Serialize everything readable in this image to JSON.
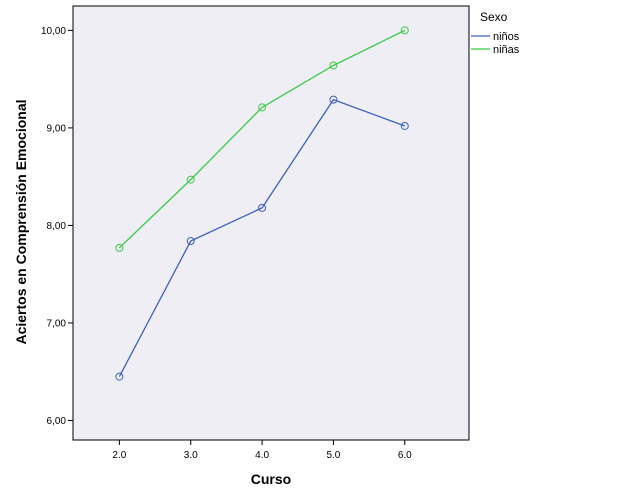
{
  "chart_data": {
    "type": "line",
    "xlabel": "Curso",
    "ylabel": "Aciertos en Comprensión Emocional",
    "x": [
      2.0,
      3.0,
      4.0,
      5.0,
      6.0
    ],
    "x_tick_labels": [
      "2.0",
      "3.0",
      "4.0",
      "5.0",
      "6.0"
    ],
    "xlim": [
      1.35,
      6.9
    ],
    "ylim": [
      5.8,
      10.25
    ],
    "y_ticks": [
      6.0,
      7.0,
      8.0,
      9.0,
      10.0
    ],
    "y_tick_labels": [
      "6,00",
      "7,00",
      "8,00",
      "9,00",
      "10,00"
    ],
    "grid": false,
    "marker": "open-circle",
    "legend": {
      "title": "Sexo",
      "placement": "right-outside-top"
    },
    "series": [
      {
        "name": "niños",
        "color": "#3F5FBF",
        "values": [
          6.45,
          7.84,
          8.18,
          9.29,
          9.02
        ]
      },
      {
        "name": "niñas",
        "color": "#3CCB4A",
        "values": [
          7.77,
          8.47,
          9.21,
          9.64,
          10.0
        ]
      }
    ],
    "plot_background": "#EEEEF4"
  }
}
